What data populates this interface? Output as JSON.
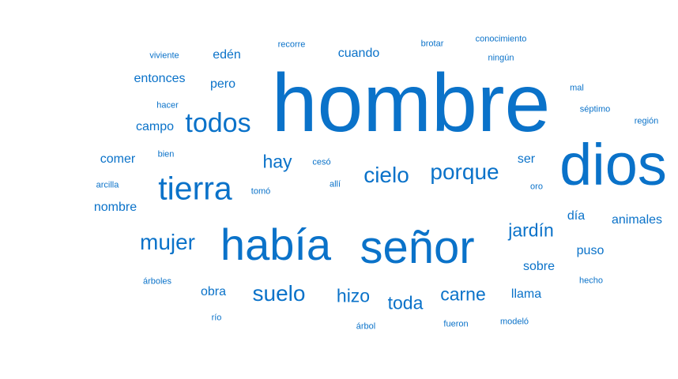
{
  "colors": {
    "word": "#0a72c9",
    "background": "#ffffff"
  },
  "words": [
    "hombre",
    "dios",
    "había",
    "señor",
    "tierra",
    "todos",
    "cielo",
    "porque",
    "mujer",
    "suelo",
    "hizo",
    "toda",
    "carne",
    "jardín",
    "hay",
    "entonces",
    "edén",
    "cuando",
    "pero",
    "campo",
    "comer",
    "nombre",
    "ser",
    "animales",
    "obra",
    "sobre",
    "puso",
    "llama",
    "día",
    "viviente",
    "recorre",
    "brotar",
    "conocimiento",
    "ningún",
    "mal",
    "séptimo",
    "región",
    "hacer",
    "bien",
    "cesó",
    "allí",
    "oro",
    "arcilla",
    "tomó",
    "árboles",
    "hecho",
    "río",
    "árbol",
    "fueron",
    "modeló"
  ]
}
